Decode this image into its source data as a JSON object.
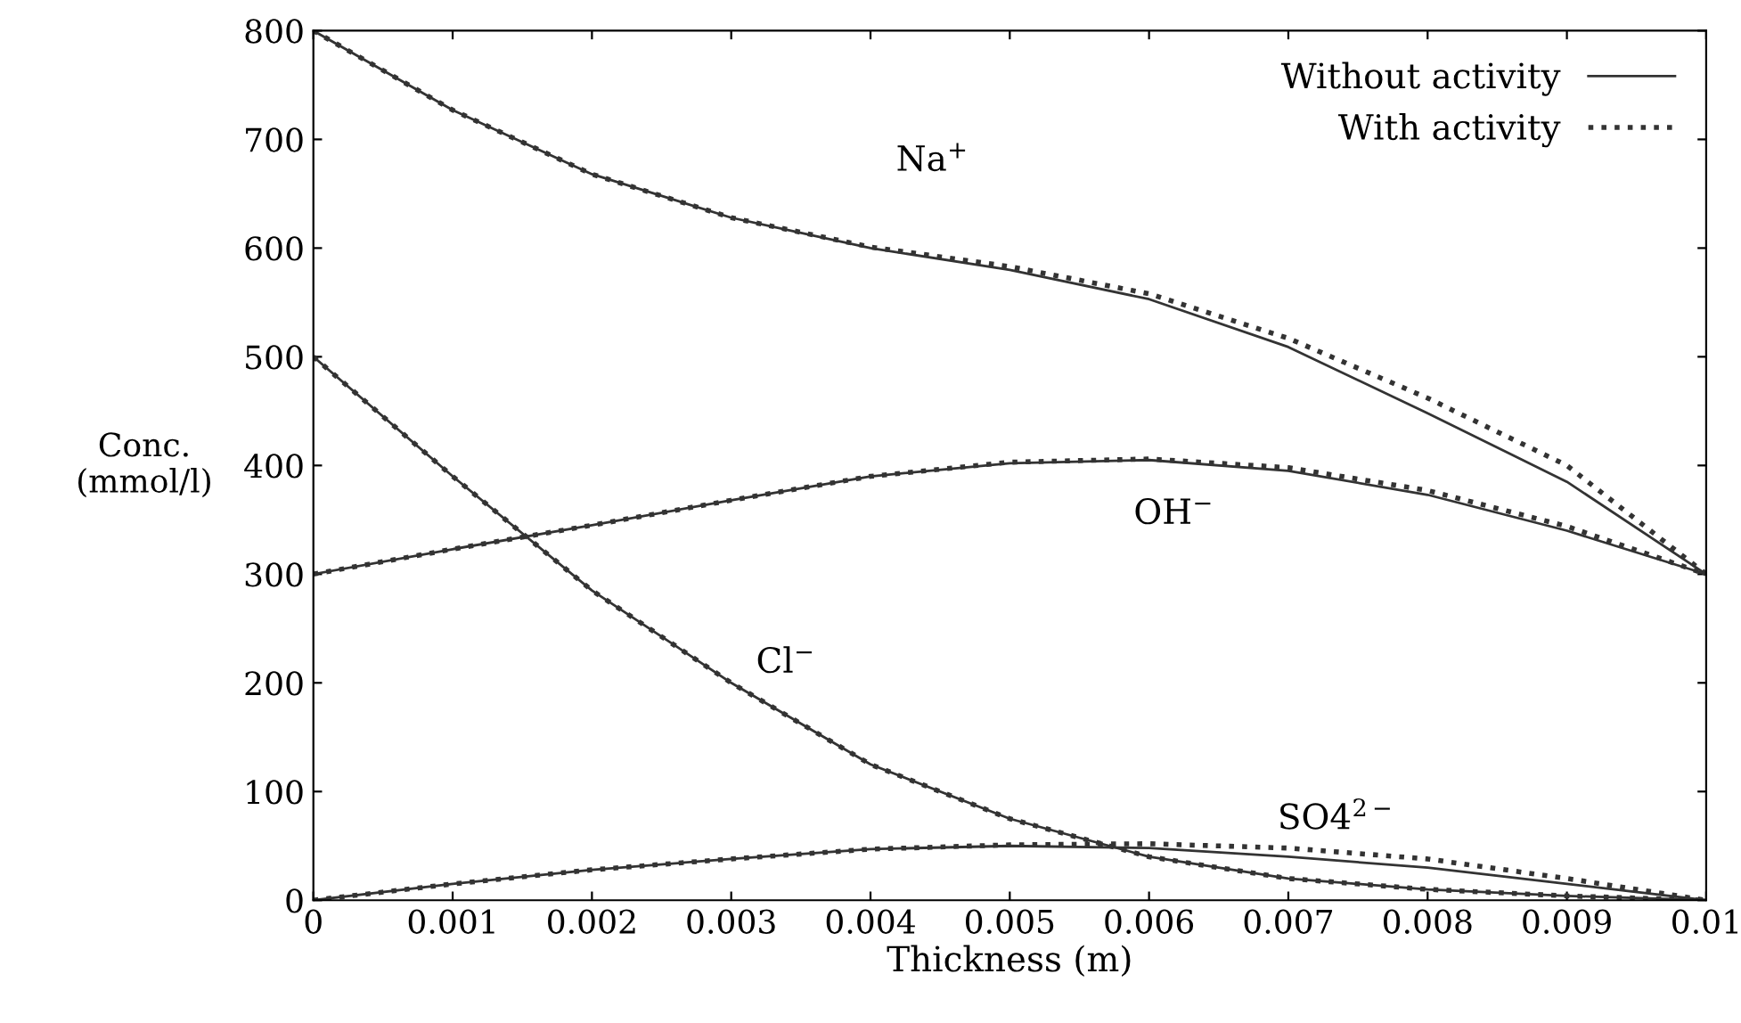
{
  "chart_data": {
    "type": "line",
    "xlabel": "Thickness (m)",
    "ylabel": "Conc.\n(mmol/l)",
    "x": [
      0,
      0.001,
      0.002,
      0.003,
      0.004,
      0.005,
      0.006,
      0.007,
      0.008,
      0.009,
      0.01
    ],
    "xlim": [
      0,
      0.01
    ],
    "xticks": [
      0,
      0.001,
      0.002,
      0.003,
      0.004,
      0.005,
      0.006,
      0.007,
      0.008,
      0.009,
      0.01
    ],
    "ylim": [
      0,
      800
    ],
    "yticks": [
      0,
      100,
      200,
      300,
      400,
      500,
      600,
      700,
      800
    ],
    "grid": false,
    "legend": "top right",
    "marker": "none",
    "series": [
      {
        "name": "Without activity",
        "color": "#333333",
        "line_style": "solid",
        "values": [
          800,
          727,
          668,
          628,
          600,
          580,
          553,
          509,
          448,
          385,
          300
        ]
      },
      {
        "name": "With activity",
        "color": "#333333",
        "line_style": "dotted",
        "values": [
          800,
          727,
          668,
          628,
          601,
          583,
          558,
          517,
          462,
          400,
          300
        ]
      },
      {
        "color": "#333333",
        "line_style": "solid",
        "values": [
          300,
          323,
          345,
          368,
          390,
          402,
          405,
          395,
          373,
          340,
          300
        ]
      },
      {
        "color": "#333333",
        "line_style": "dotted",
        "values": [
          300,
          323,
          345,
          368,
          390,
          403,
          406,
          398,
          377,
          344,
          300
        ]
      },
      {
        "color": "#333333",
        "line_style": "solid",
        "values": [
          500,
          390,
          285,
          200,
          125,
          75,
          40,
          20,
          10,
          4,
          0
        ]
      },
      {
        "color": "#333333",
        "line_style": "dotted",
        "values": [
          500,
          390,
          285,
          200,
          125,
          75,
          40,
          20,
          10,
          4,
          0
        ]
      },
      {
        "color": "#333333",
        "line_style": "solid",
        "values": [
          0,
          15,
          28,
          38,
          47,
          50,
          48,
          40,
          30,
          15,
          0
        ]
      },
      {
        "color": "#333333",
        "line_style": "dotted",
        "values": [
          0,
          15,
          28,
          38,
          47,
          51,
          52,
          48,
          38,
          20,
          0
        ]
      }
    ],
    "annotations": [
      "Na$^{+}$",
      "OH$^{−}$",
      "Cl$^{−}$",
      "SO4$^{2−}$"
    ]
  }
}
